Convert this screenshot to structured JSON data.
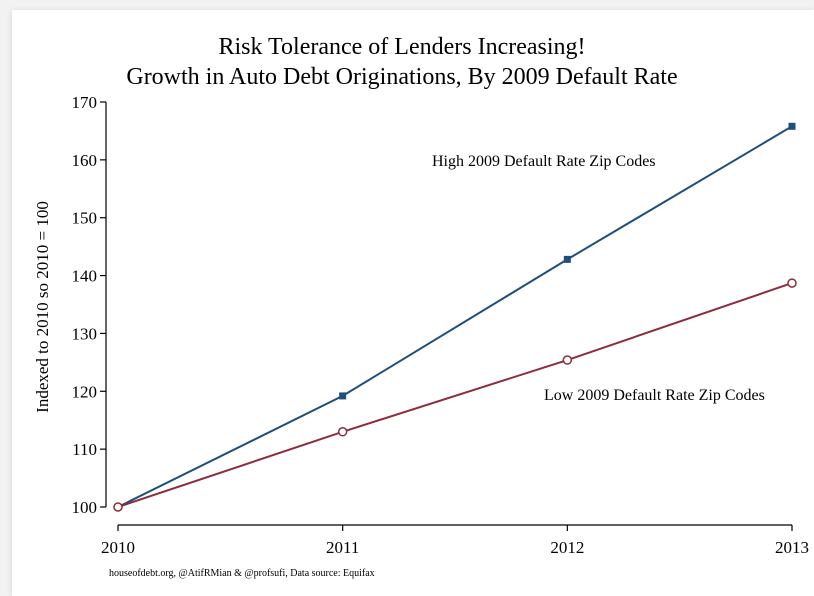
{
  "chart_data": {
    "type": "line",
    "title": [
      "Risk Tolerance of Lenders Increasing!",
      "Growth in Auto Debt Originations, By 2009 Default Rate"
    ],
    "xlabel": "",
    "ylabel": "Indexed to 2010 so 2010 = 100",
    "x": [
      2010,
      2011,
      2012,
      2013
    ],
    "x_tick_labels": [
      "2010",
      "2011",
      "2012",
      "2013"
    ],
    "y_ticks": [
      100,
      110,
      120,
      130,
      140,
      150,
      160,
      170
    ],
    "y_tick_labels": [
      "100",
      "110",
      "120",
      "130",
      "140",
      "150",
      "160",
      "170"
    ],
    "xlim": [
      2010,
      2013
    ],
    "ylim": [
      100,
      170
    ],
    "grid": false,
    "series": [
      {
        "name": "High 2009 Default Rate Zip Codes",
        "values": [
          100,
          119.2,
          142.8,
          165.8
        ],
        "color": "#1f4e79",
        "marker": "filled-square"
      },
      {
        "name": "Low 2009 Default Rate Zip Codes",
        "values": [
          100,
          113,
          125.4,
          138.7
        ],
        "color": "#8b2e3c",
        "marker": "hollow-circle"
      }
    ],
    "source_note": "houseofdebt.org, @AtifRMian & @profsufi, Data source: Equifax"
  }
}
